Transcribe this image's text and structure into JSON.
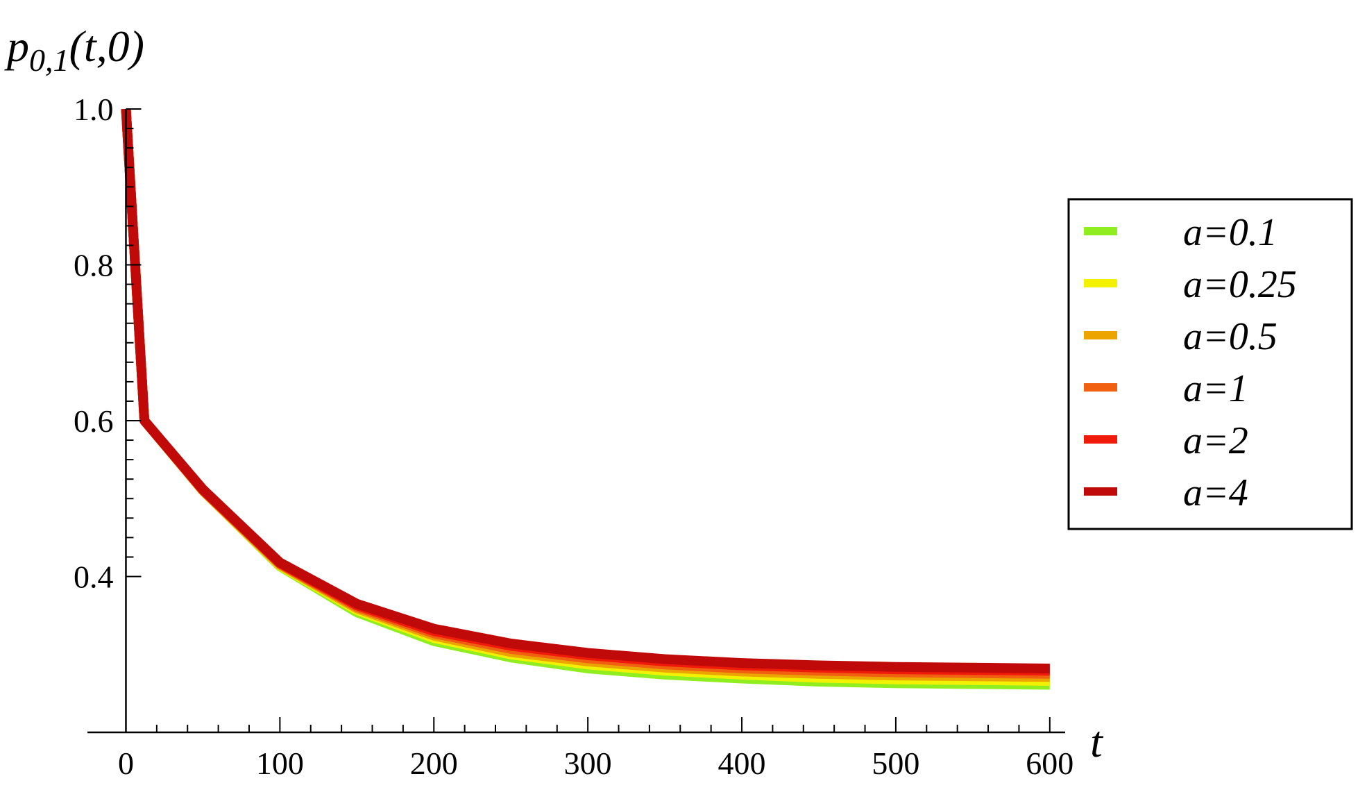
{
  "chart_data": {
    "type": "line",
    "title": "",
    "xlabel": "t",
    "ylabel": "p",
    "ylabel_subscript": "0,1",
    "ylabel_args": "(t,0)",
    "xlim": [
      -25,
      610
    ],
    "ylim": [
      0.2,
      1.0
    ],
    "x_ticks": [
      0,
      100,
      200,
      300,
      400,
      500,
      600
    ],
    "x_tick_labels": [
      "0",
      "100",
      "200",
      "300",
      "400",
      "500",
      "600"
    ],
    "y_ticks": [
      0.4,
      0.6,
      0.8,
      1.0
    ],
    "y_tick_labels": [
      "0.4",
      "0.6",
      "0.8",
      "1.0"
    ],
    "grid": false,
    "legend_position": "right",
    "x": [
      0,
      12,
      50,
      100,
      150,
      200,
      250,
      300,
      350,
      400,
      450,
      500,
      550,
      600
    ],
    "series": [
      {
        "name": "a=0.1",
        "color": "#90ee20",
        "values": [
          1.0,
          0.6,
          0.51,
          0.413,
          0.354,
          0.317,
          0.296,
          0.282,
          0.274,
          0.269,
          0.265,
          0.263,
          0.262,
          0.261
        ]
      },
      {
        "name": "a=0.25",
        "color": "#f2f200",
        "values": [
          1.0,
          0.6,
          0.51,
          0.414,
          0.357,
          0.321,
          0.3,
          0.287,
          0.279,
          0.274,
          0.27,
          0.268,
          0.267,
          0.266
        ]
      },
      {
        "name": "a=0.5",
        "color": "#eca500",
        "values": [
          1.0,
          0.6,
          0.51,
          0.415,
          0.359,
          0.324,
          0.303,
          0.291,
          0.283,
          0.278,
          0.275,
          0.273,
          0.272,
          0.271
        ]
      },
      {
        "name": "a=1",
        "color": "#f06010",
        "values": [
          1.0,
          0.6,
          0.511,
          0.416,
          0.361,
          0.327,
          0.307,
          0.295,
          0.287,
          0.282,
          0.279,
          0.277,
          0.276,
          0.275
        ]
      },
      {
        "name": "a=2",
        "color": "#f01a0a",
        "values": [
          1.0,
          0.6,
          0.511,
          0.417,
          0.363,
          0.33,
          0.311,
          0.299,
          0.291,
          0.286,
          0.283,
          0.281,
          0.28,
          0.279
        ]
      },
      {
        "name": "a=4",
        "color": "#c00a0a",
        "values": [
          1.0,
          0.6,
          0.512,
          0.418,
          0.365,
          0.333,
          0.314,
          0.302,
          0.294,
          0.289,
          0.286,
          0.284,
          0.283,
          0.282
        ]
      }
    ]
  }
}
